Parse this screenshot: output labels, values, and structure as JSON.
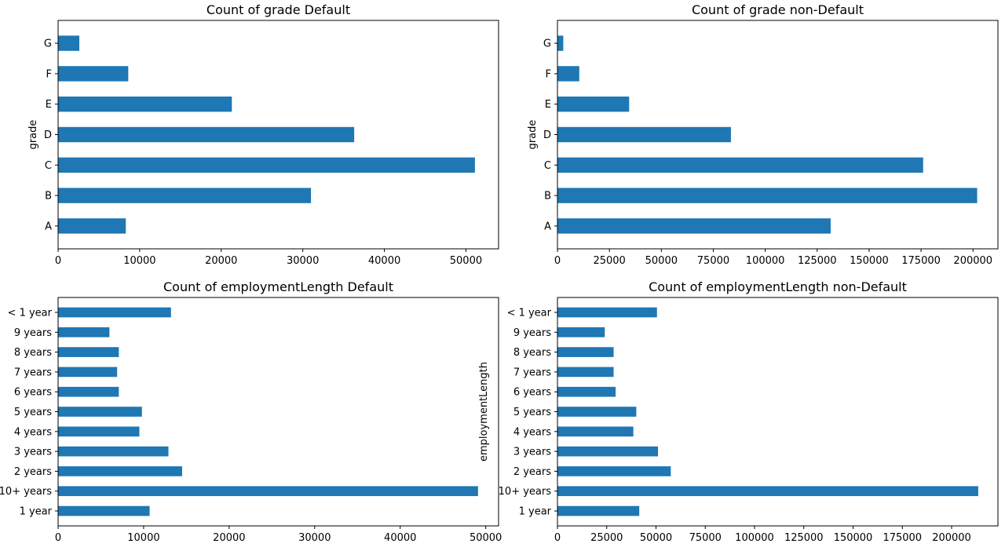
{
  "bar_color": "#1f77b4",
  "chart_data": [
    {
      "type": "bar",
      "orientation": "horizontal",
      "title": "Count of grade Default",
      "xlabel": "",
      "ylabel": "grade",
      "categories": [
        "A",
        "B",
        "C",
        "D",
        "E",
        "F",
        "G"
      ],
      "values": [
        8300,
        31000,
        51100,
        36300,
        21300,
        8600,
        2600
      ],
      "xlim": [
        0,
        54000
      ],
      "xticks": [
        0,
        10000,
        20000,
        30000,
        40000,
        50000
      ],
      "grid": false,
      "legend": "none"
    },
    {
      "type": "bar",
      "orientation": "horizontal",
      "title": "Count of grade non-Default",
      "xlabel": "",
      "ylabel": "grade",
      "categories": [
        "A",
        "B",
        "C",
        "D",
        "E",
        "F",
        "G"
      ],
      "values": [
        131500,
        202000,
        176000,
        83500,
        34500,
        10500,
        2800
      ],
      "xlim": [
        0,
        212000
      ],
      "xticks": [
        0,
        25000,
        50000,
        75000,
        100000,
        125000,
        150000,
        175000,
        200000
      ],
      "grid": false,
      "legend": "none"
    },
    {
      "type": "bar",
      "orientation": "horizontal",
      "title": "Count of employmentLength Default",
      "xlabel": "",
      "ylabel": "",
      "categories": [
        "1 year",
        "10+ years",
        "2 years",
        "3 years",
        "4 years",
        "5 years",
        "6 years",
        "7 years",
        "8 years",
        "9 years",
        "< 1 year"
      ],
      "values": [
        10700,
        49100,
        14500,
        12900,
        9500,
        9800,
        7100,
        6900,
        7100,
        6000,
        13200
      ],
      "xlim": [
        0,
        51500
      ],
      "xticks": [
        0,
        10000,
        20000,
        30000,
        40000,
        50000
      ],
      "grid": false,
      "legend": "none"
    },
    {
      "type": "bar",
      "orientation": "horizontal",
      "title": "Count of employmentLength non-Default",
      "xlabel": "",
      "ylabel": "employmentLength",
      "categories": [
        "1 year",
        "10+ years",
        "2 years",
        "3 years",
        "4 years",
        "5 years",
        "6 years",
        "7 years",
        "8 years",
        "9 years",
        "< 1 year"
      ],
      "values": [
        41500,
        213500,
        57500,
        51000,
        38500,
        40000,
        29500,
        28500,
        28500,
        24000,
        50500
      ],
      "xlim": [
        0,
        223500
      ],
      "xticks": [
        0,
        25000,
        50000,
        75000,
        100000,
        125000,
        150000,
        175000,
        200000
      ],
      "grid": false,
      "legend": "none"
    }
  ]
}
